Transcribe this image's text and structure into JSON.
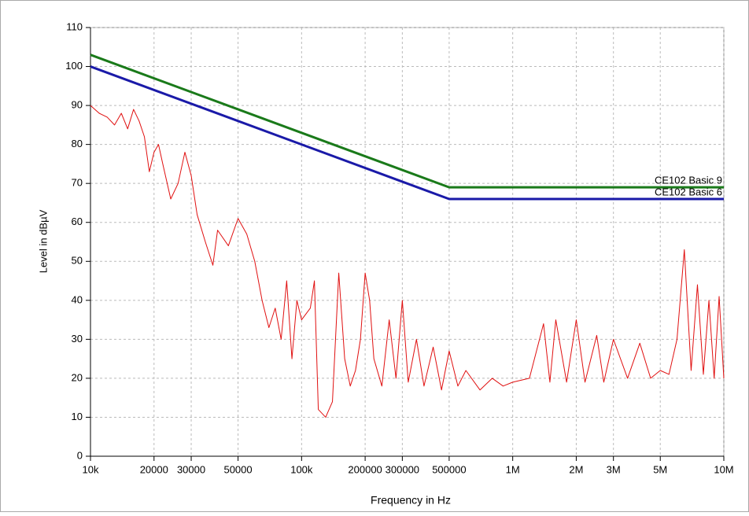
{
  "chart_data": {
    "type": "line",
    "xlabel": "Frequency in Hz",
    "ylabel": "Level in dBµV",
    "xscale": "log",
    "xlim": [
      10000,
      10000000
    ],
    "ylim": [
      0,
      110
    ],
    "xticks": [
      {
        "value": 10000,
        "label": "10k"
      },
      20000,
      30000,
      50000,
      {
        "value": 100000,
        "label": "100k"
      },
      200000,
      300000,
      500000,
      {
        "value": 1000000,
        "label": "1M"
      },
      {
        "value": 2000000,
        "label": "2M"
      },
      {
        "value": 3000000,
        "label": "3M"
      },
      {
        "value": 5000000,
        "label": "5M"
      },
      {
        "value": 10000000,
        "label": "10M"
      }
    ],
    "yticks": [
      0,
      10,
      20,
      30,
      40,
      50,
      60,
      70,
      80,
      90,
      100,
      110
    ],
    "grid": true,
    "series": [
      {
        "name": "CE102 Basic 9",
        "color": "#1a7a1a",
        "x": [
          10000,
          500000,
          10000000
        ],
        "values": [
          103,
          69,
          69
        ]
      },
      {
        "name": "CE102 Basic 6",
        "color": "#1a1aa8",
        "x": [
          10000,
          500000,
          10000000
        ],
        "values": [
          100,
          66,
          66
        ]
      },
      {
        "color": "#e01010",
        "x": [
          10000,
          11000,
          12000,
          13000,
          14000,
          15000,
          16000,
          17000,
          18000,
          19000,
          20000,
          21000,
          22000,
          24000,
          26000,
          28000,
          30000,
          32000,
          35000,
          38000,
          40000,
          45000,
          50000,
          55000,
          60000,
          65000,
          70000,
          75000,
          80000,
          85000,
          90000,
          95000,
          100000,
          110000,
          115000,
          120000,
          130000,
          140000,
          150000,
          160000,
          170000,
          180000,
          190000,
          200000,
          210000,
          220000,
          240000,
          260000,
          280000,
          300000,
          320000,
          350000,
          380000,
          420000,
          460000,
          500000,
          550000,
          600000,
          700000,
          800000,
          900000,
          1000000,
          1200000,
          1400000,
          1500000,
          1600000,
          1800000,
          2000000,
          2200000,
          2500000,
          2700000,
          3000000,
          3500000,
          4000000,
          4500000,
          5000000,
          5500000,
          6000000,
          6500000,
          7000000,
          7500000,
          8000000,
          8500000,
          9000000,
          9500000,
          10000000
        ],
        "values": [
          90,
          88,
          87,
          85,
          88,
          84,
          89,
          86,
          82,
          73,
          78,
          80,
          75,
          66,
          70,
          78,
          72,
          62,
          55,
          49,
          58,
          54,
          61,
          57,
          50,
          40,
          33,
          38,
          30,
          45,
          25,
          40,
          35,
          38,
          45,
          12,
          10,
          14,
          47,
          25,
          18,
          22,
          30,
          47,
          40,
          25,
          18,
          35,
          20,
          40,
          19,
          30,
          18,
          28,
          17,
          27,
          18,
          22,
          17,
          20,
          18,
          19,
          20,
          34,
          19,
          35,
          19,
          35,
          19,
          31,
          19,
          30,
          20,
          29,
          20,
          22,
          21,
          30,
          53,
          22,
          44,
          21,
          40,
          20,
          41,
          20
        ]
      }
    ]
  }
}
